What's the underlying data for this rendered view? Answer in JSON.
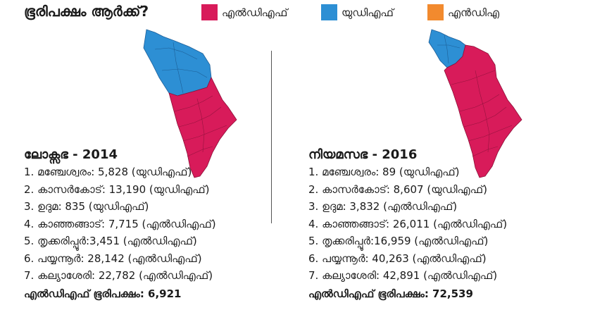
{
  "title": "ഭൂരിപക്ഷം ആർക്ക്?",
  "legend": [
    {
      "label": "എൽഡിഎഫ്",
      "color": "#d81b5a"
    },
    {
      "label": "യുഡിഎഫ്",
      "color": "#2d8fd4"
    },
    {
      "label": "എൻഡിഎ",
      "color": "#f28a2e"
    }
  ],
  "colors": {
    "ldf": "#d81b5a",
    "udf": "#2d8fd4",
    "nda": "#f28a2e"
  },
  "left": {
    "heading": "ലോക്സഭ - 2014",
    "rows": [
      "1. മഞ്ചേശ്വരം: 5,828 (യുഡിഎഫ്)",
      "2. കാസർകോട്: 13,190 (യുഡിഎഫ്)",
      "3. ഉദുമ: 835 (യുഡിഎഫ്)",
      "4. കാഞ്ഞങ്ങാട്: 7,715 (എൽഡിഎഫ്)",
      "5. തൃക്കരിപ്പൂർ:3,451 (എൽഡിഎഫ്)",
      "6. പയ്യന്നൂർ: 28,142 (എൽഡിഎഫ്)",
      "7. കല്യാശേരി: 22,782 (എൽഡിഎഫ്)"
    ],
    "majority": "എൽഡിഎഫ് ഭൂരിപക്ഷം: 6,921"
  },
  "right": {
    "heading": "നിയമസഭ - 2016",
    "rows": [
      "1. മഞ്ചേശ്വരം: 89 (യുഡിഎഫ്)",
      "2. കാസർകോട്: 8,607 (യുഡിഎഫ്)",
      "3. ഉദുമ: 3,832 (എൽഡിഎഫ്)",
      "4. കാഞ്ഞങ്ങാട്: 26,011 (എൽഡിഎഫ്)",
      "5. തൃക്കരിപ്പൂർ:16,959 (എൽഡിഎഫ്)",
      "6. പയ്യന്നൂർ: 40,263 (എൽഡിഎഫ്)",
      "7. കല്യാശേരി: 42,891 (എൽഡിഎഫ്)"
    ],
    "majority": "എൽഡിഎഫ് ഭൂരിപക്ഷം: 72,539"
  }
}
